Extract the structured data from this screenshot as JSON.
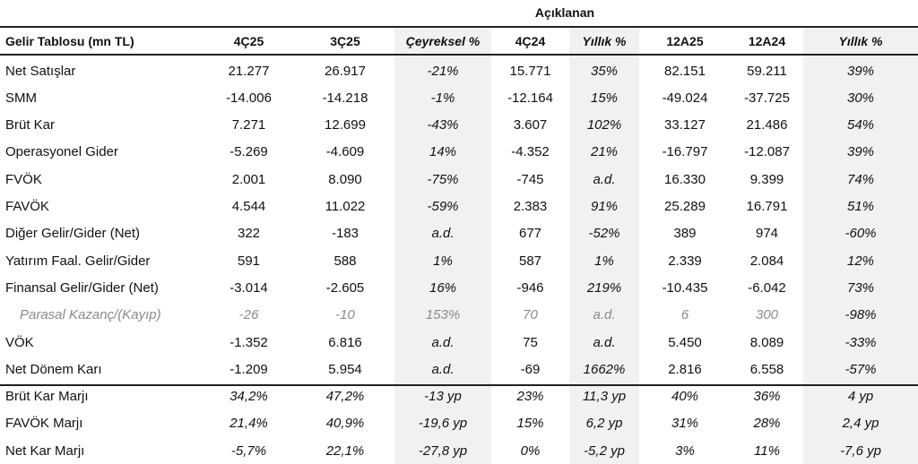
{
  "group_header": "Açıklanan",
  "columns": [
    "Gelir Tablosu (mn TL)",
    "4Ç25",
    "3Ç25",
    "Çeyreksel %",
    "4Ç24",
    "Yıllık %",
    "12A25",
    "12A24",
    "Yıllık %"
  ],
  "rows": [
    {
      "label": "Net Satışlar",
      "values": [
        "21.277",
        "26.917",
        "-21%",
        "15.771",
        "35%",
        "82.151",
        "59.211",
        "39%"
      ]
    },
    {
      "label": "SMM",
      "values": [
        "-14.006",
        "-14.218",
        "-1%",
        "-12.164",
        "15%",
        "-49.024",
        "-37.725",
        "30%"
      ]
    },
    {
      "label": "Brüt Kar",
      "values": [
        "7.271",
        "12.699",
        "-43%",
        "3.607",
        "102%",
        "33.127",
        "21.486",
        "54%"
      ]
    },
    {
      "label": "Operasyonel Gider",
      "values": [
        "-5.269",
        "-4.609",
        "14%",
        "-4.352",
        "21%",
        "-16.797",
        "-12.087",
        "39%"
      ]
    },
    {
      "label": "FVÖK",
      "values": [
        "2.001",
        "8.090",
        "-75%",
        "-745",
        "a.d.",
        "16.330",
        "9.399",
        "74%"
      ]
    },
    {
      "label": "FAVÖK",
      "values": [
        "4.544",
        "11.022",
        "-59%",
        "2.383",
        "91%",
        "25.289",
        "16.791",
        "51%"
      ]
    },
    {
      "label": "Diğer Gelir/Gider (Net)",
      "values": [
        "322",
        "-183",
        "a.d.",
        "677",
        "-52%",
        "389",
        "974",
        "-60%"
      ]
    },
    {
      "label": "Yatırım Faal. Gelir/Gider",
      "values": [
        "591",
        "588",
        "1%",
        "587",
        "1%",
        "2.339",
        "2.084",
        "12%"
      ]
    },
    {
      "label": "Finansal Gelir/Gider (Net)",
      "values": [
        "-3.014",
        "-2.605",
        "16%",
        "-946",
        "219%",
        "-10.435",
        "-6.042",
        "73%"
      ]
    },
    {
      "label": "Parasal Kazanç/(Kayıp)",
      "values": [
        "-26",
        "-10",
        "153%",
        "70",
        "a.d.",
        "6",
        "300",
        "-98%"
      ],
      "style": "muted"
    },
    {
      "label": "VÖK",
      "values": [
        "-1.352",
        "6.816",
        "a.d.",
        "75",
        "a.d.",
        "5.450",
        "8.089",
        "-33%"
      ]
    },
    {
      "label": "Net Dönem Karı",
      "values": [
        "-1.209",
        "5.954",
        "a.d.",
        "-69",
        "1662%",
        "2.816",
        "6.558",
        "-57%"
      ]
    },
    {
      "label": "Brüt Kar Marjı",
      "values": [
        "34,2%",
        "47,2%",
        "-13 yp",
        "23%",
        "11,3 yp",
        "40%",
        "36%",
        "4 yp"
      ],
      "style": "margin"
    },
    {
      "label": "FAVÖK Marjı",
      "values": [
        "21,4%",
        "40,9%",
        "-19,6 yp",
        "15%",
        "6,2 yp",
        "31%",
        "28%",
        "2,4 yp"
      ],
      "style": "margin"
    },
    {
      "label": "Net Kar Marjı",
      "values": [
        "-5,7%",
        "22,1%",
        "-27,8 yp",
        "0%",
        "-5,2 yp",
        "3%",
        "11%",
        "-7,6 yp"
      ],
      "style": "margin"
    }
  ]
}
